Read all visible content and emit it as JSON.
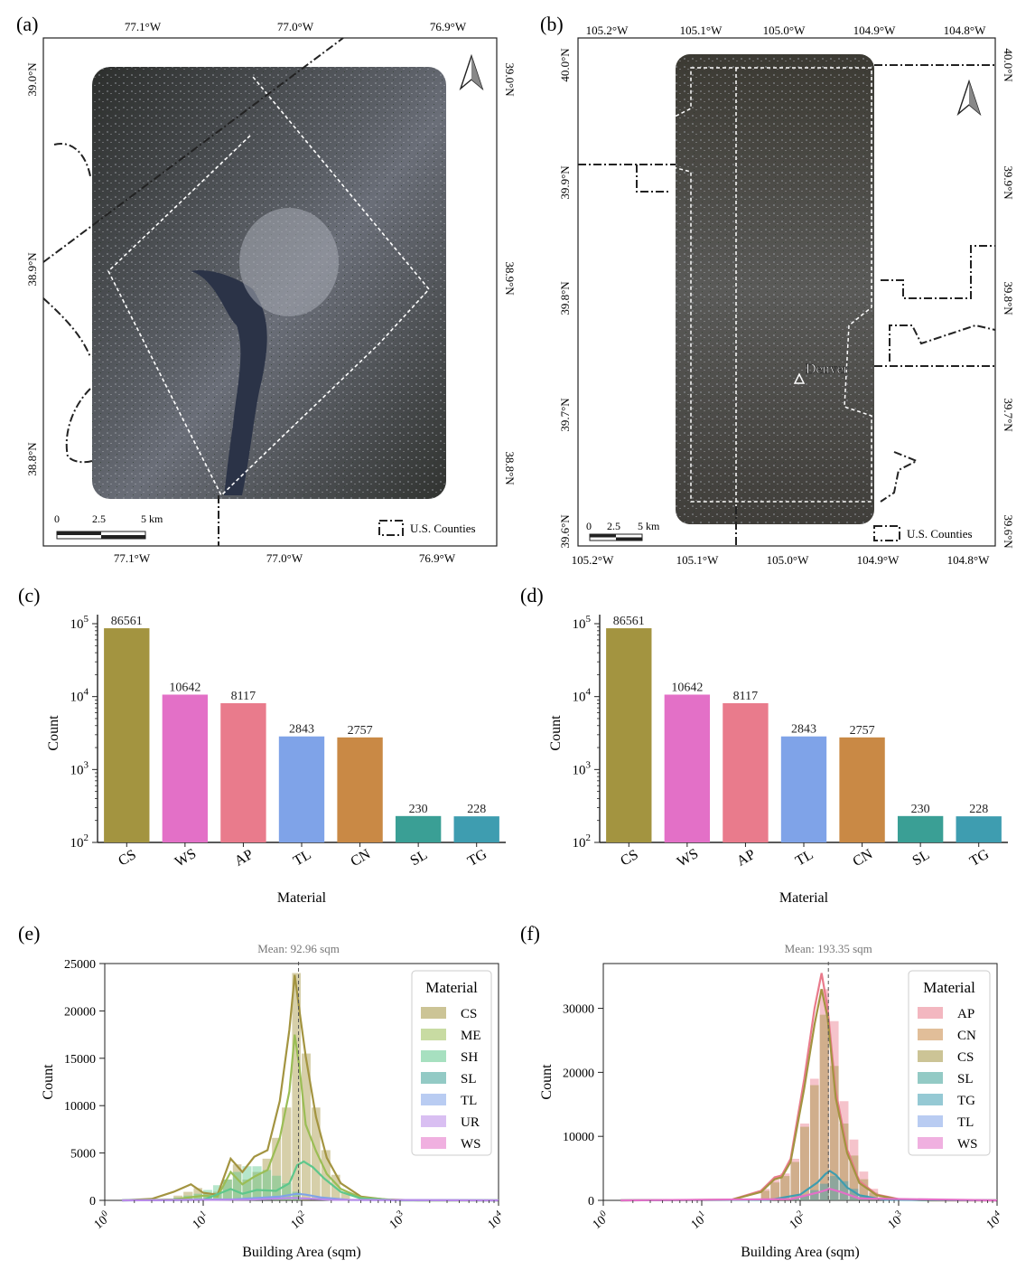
{
  "panels": {
    "a": {
      "label": "(a)",
      "top_ticks": [
        "77.1°W",
        "77.0°W",
        "76.9°W"
      ],
      "bottom_ticks": [
        "77.1°W",
        "77.0°W",
        "76.9°W"
      ],
      "left_ticks": [
        "39.0°N",
        "38.9°N",
        "38.8°N"
      ],
      "right_ticks": [
        "39.0°N",
        "38.9°N",
        "38.8°N"
      ],
      "scale_labels": [
        "0",
        "2.5",
        "5 km"
      ],
      "legend": "U.S. Counties"
    },
    "b": {
      "label": "(b)",
      "top_ticks": [
        "105.2°W",
        "105.1°W",
        "105.0°W",
        "104.9°W",
        "104.8°W"
      ],
      "bottom_ticks": [
        "105.2°W",
        "105.1°W",
        "105.0°W",
        "104.9°W",
        "104.8°W"
      ],
      "left_ticks": [
        "40.0°N",
        "39.9°N",
        "39.8°N",
        "39.7°N",
        "39.6°N"
      ],
      "right_ticks": [
        "40.0°N",
        "39.9°N",
        "39.8°N",
        "39.7°N",
        "39.6°N"
      ],
      "scale_labels": [
        "0",
        "2.5",
        "5 km"
      ],
      "legend": "U.S. Counties",
      "city": "Denver"
    },
    "c": {
      "label": "(c)"
    },
    "d": {
      "label": "(d)"
    },
    "e": {
      "label": "(e)"
    },
    "f": {
      "label": "(f)"
    }
  },
  "colors": {
    "CS": "#a39440",
    "WS": "#e370c7",
    "AP": "#e97b8c",
    "TL": "#7fa3e8",
    "CN": "#c98945",
    "SL": "#3a9f95",
    "TG": "#3e9db0",
    "ME": "#9bbd55",
    "SH": "#5ec78c",
    "UR": "#b98ae8"
  },
  "chart_data": [
    {
      "panel": "c",
      "type": "bar",
      "categories": [
        "CS",
        "WS",
        "AP",
        "TL",
        "CN",
        "SL",
        "TG"
      ],
      "values": [
        86561,
        10642,
        8117,
        2843,
        2757,
        230,
        228
      ],
      "value_labels": [
        "86561",
        "10642",
        "8117",
        "2843",
        "2757",
        "230",
        "228"
      ],
      "xlabel": "Material",
      "ylabel": "Count",
      "yscale": "log",
      "ylim": [
        100,
        100000
      ],
      "ytick_labels": [
        "10",
        "10",
        "10",
        "10"
      ],
      "ytick_exps": [
        "2",
        "3",
        "4",
        "5"
      ]
    },
    {
      "panel": "d",
      "type": "bar",
      "categories": [
        "CS",
        "WS",
        "AP",
        "TL",
        "CN",
        "SL",
        "TG"
      ],
      "values": [
        86561,
        10642,
        8117,
        2843,
        2757,
        230,
        228
      ],
      "value_labels": [
        "86561",
        "10642",
        "8117",
        "2843",
        "2757",
        "230",
        "228"
      ],
      "xlabel": "Material",
      "ylabel": "Count",
      "yscale": "log",
      "ylim": [
        100,
        100000
      ],
      "ytick_labels": [
        "10",
        "10",
        "10",
        "10"
      ],
      "ytick_exps": [
        "2",
        "3",
        "4",
        "5"
      ]
    },
    {
      "panel": "e",
      "type": "area",
      "xscale": "log",
      "xlim": [
        1,
        10000
      ],
      "ylim": [
        0,
        25000
      ],
      "yticks": [
        0,
        5000,
        10000,
        15000,
        20000,
        25000
      ],
      "ytick_labels": [
        "0",
        "5000",
        "10000",
        "15000",
        "20000",
        "25000"
      ],
      "xtick_labels": [
        "10",
        "10",
        "10",
        "10",
        "10"
      ],
      "xtick_exps": [
        "0",
        "1",
        "2",
        "3",
        "4"
      ],
      "xlabel": "Building Area (sqm)",
      "ylabel": "Count",
      "mean_label": "Mean: 92.96 sqm",
      "mean": 92.96,
      "legend_title": "Material",
      "legend_position": "top-right",
      "legend": [
        "CS",
        "ME",
        "SH",
        "SL",
        "TL",
        "UR",
        "WS"
      ],
      "bins": [
        5,
        6.3,
        8,
        10,
        12.6,
        15.8,
        20,
        25,
        31.6,
        40,
        50,
        63,
        80,
        100,
        126,
        158,
        200,
        251,
        316
      ],
      "series": [
        {
          "name": "CS",
          "bars": [
            500,
            900,
            1300,
            700,
            900,
            2200,
            3800,
            2200,
            3000,
            4400,
            6600,
            9800,
            24000,
            15500,
            9800,
            5300,
            2700,
            900
          ],
          "x": [
            1.5,
            3,
            5,
            7.5,
            10,
            14,
            19,
            25,
            33,
            45,
            60,
            75,
            85,
            95,
            110,
            140,
            180,
            250,
            400,
            700,
            1500,
            10000
          ],
          "y": [
            0,
            150,
            900,
            1700,
            800,
            600,
            4400,
            3000,
            4600,
            5300,
            10500,
            18000,
            23800,
            20000,
            15200,
            8800,
            4500,
            1800,
            400,
            100,
            0,
            0
          ]
        },
        {
          "name": "ME",
          "bars": [],
          "x": [
            1.5,
            5,
            10,
            14,
            19,
            25,
            33,
            45,
            60,
            75,
            85,
            95,
            110,
            140,
            180,
            250,
            400,
            1000,
            10000
          ],
          "y": [
            0,
            100,
            500,
            400,
            3000,
            1700,
            2500,
            3200,
            6600,
            11500,
            17500,
            14000,
            8000,
            5200,
            2800,
            1200,
            300,
            0,
            0
          ]
        },
        {
          "name": "SH",
          "bars": [
            300,
            500,
            700,
            1100,
            1600,
            2200,
            3000,
            3600,
            3600,
            3200,
            2600,
            1800,
            900
          ],
          "x": [
            1.5,
            10,
            19,
            25,
            35,
            55,
            75,
            90,
            105,
            130,
            170,
            250,
            400,
            1000,
            10000
          ],
          "y": [
            0,
            50,
            1200,
            700,
            1100,
            1000,
            1800,
            3700,
            4100,
            3500,
            2300,
            900,
            200,
            0,
            0
          ]
        },
        {
          "name": "TL",
          "bars": [],
          "x": [
            1.5,
            20,
            60,
            90,
            110,
            160,
            300,
            10000
          ],
          "y": [
            0,
            100,
            400,
            700,
            600,
            300,
            50,
            0
          ]
        },
        {
          "name": "UR",
          "bars": [],
          "x": [
            1.5,
            30,
            80,
            110,
            200,
            10000
          ],
          "y": [
            0,
            80,
            250,
            200,
            60,
            0
          ]
        }
      ]
    },
    {
      "panel": "f",
      "type": "area",
      "xscale": "log",
      "xlim": [
        1,
        10000
      ],
      "ylim": [
        0,
        37000
      ],
      "yticks": [
        0,
        10000,
        20000,
        30000
      ],
      "ytick_labels": [
        "0",
        "10000",
        "20000",
        "30000"
      ],
      "xtick_labels": [
        "10",
        "10",
        "10",
        "10",
        "10"
      ],
      "xtick_exps": [
        "0",
        "1",
        "2",
        "3",
        "4"
      ],
      "xlabel": "Building Area (sqm)",
      "ylabel": "Count",
      "mean_label": "Mean: 193.35 sqm",
      "mean": 193.35,
      "legend_title": "Material",
      "legend_position": "top-right",
      "legend": [
        "AP",
        "CN",
        "CS",
        "SL",
        "TG",
        "TL",
        "WS"
      ],
      "bins": [
        40,
        50,
        63,
        80,
        100,
        126,
        158,
        200,
        251,
        316,
        398,
        501,
        631,
        794
      ],
      "series": [
        {
          "name": "AP",
          "bars": [
            1800,
            3200,
            4200,
            6500,
            12000,
            19000,
            33000,
            28000,
            15500,
            9500,
            4500,
            1800,
            600
          ],
          "x": [
            1.5,
            20,
            40,
            55,
            65,
            80,
            110,
            140,
            165,
            190,
            230,
            300,
            400,
            600,
            1000,
            2000,
            10000
          ],
          "y": [
            0,
            100,
            1500,
            3600,
            3900,
            6500,
            19000,
            30000,
            35500,
            30000,
            17000,
            8000,
            3000,
            900,
            200,
            0,
            0
          ]
        },
        {
          "name": "CS",
          "bars": [
            1500,
            2800,
            3800,
            6000,
            11500,
            18000,
            29000,
            21000,
            12000,
            7000,
            3300,
            1200,
            400
          ],
          "x": [
            1.5,
            20,
            40,
            55,
            65,
            80,
            110,
            140,
            165,
            190,
            230,
            300,
            400,
            600,
            1000,
            2000,
            10000
          ],
          "y": [
            0,
            80,
            1300,
            3300,
            3600,
            6000,
            17500,
            27500,
            33000,
            28500,
            16000,
            7400,
            2700,
            800,
            150,
            0,
            0
          ]
        },
        {
          "name": "TG",
          "bars": [
            0,
            0,
            0,
            300,
            800,
            1600,
            2600,
            3800,
            3000,
            1800,
            800,
            300,
            100
          ],
          "x": [
            1.5,
            50,
            100,
            150,
            180,
            200,
            230,
            300,
            400,
            700,
            10000
          ],
          "y": [
            0,
            100,
            900,
            2800,
            4100,
            4600,
            4000,
            2000,
            800,
            100,
            0
          ]
        },
        {
          "name": "WS",
          "bars": [],
          "x": [
            1.5,
            80,
            150,
            200,
            260,
            400,
            10000
          ],
          "y": [
            0,
            200,
            1200,
            1800,
            1300,
            300,
            0
          ]
        }
      ]
    }
  ]
}
